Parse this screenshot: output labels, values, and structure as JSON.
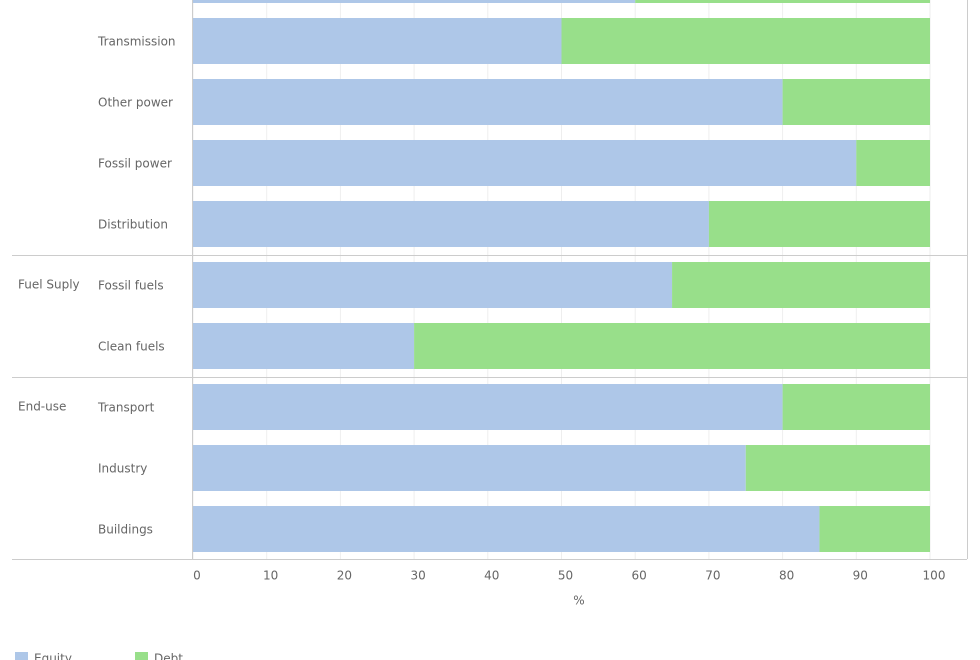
{
  "chart_data": {
    "type": "stacked-bar-horizontal",
    "categories": [
      null,
      "Transmission",
      "Other power",
      "Fossil power",
      "Distribution",
      "Fossil fuels",
      "Clean fuels",
      "Transport",
      "Industry",
      "Buildings"
    ],
    "group_labels": [
      null,
      null,
      null,
      null,
      null,
      "Fuel Suply",
      null,
      "End-use",
      null,
      null
    ],
    "series": [
      {
        "name": "Equity",
        "color": "#aec7e8",
        "values": [
          60,
          50,
          80,
          90,
          70,
          65,
          30,
          80,
          75,
          85
        ]
      },
      {
        "name": "Debt",
        "color": "#98df8a",
        "values": [
          40,
          50,
          20,
          10,
          30,
          35,
          70,
          20,
          25,
          15
        ]
      }
    ],
    "x_label": "%",
    "xlim": [
      0,
      100
    ],
    "xticks": [
      0,
      10,
      20,
      30,
      40,
      50,
      60,
      70,
      80,
      90,
      100
    ],
    "grid": true
  }
}
